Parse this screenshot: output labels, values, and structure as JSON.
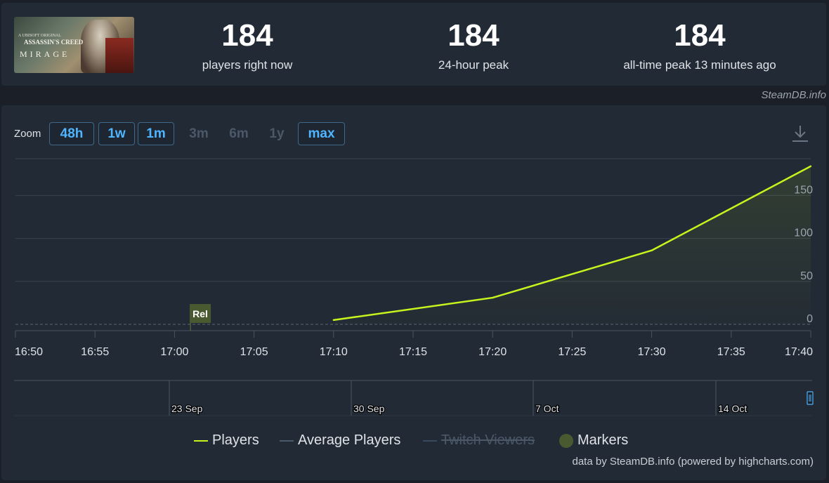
{
  "game": {
    "cover_line1": "A UBISOFT ORIGINAL",
    "cover_line2": "ASSASSIN'S CREED",
    "cover_line3": "MIRAGE"
  },
  "stats": [
    {
      "value": "184",
      "label": "players right now"
    },
    {
      "value": "184",
      "label": "24-hour peak"
    },
    {
      "value": "184",
      "label": "all-time peak 13 minutes ago"
    }
  ],
  "attribution": "SteamDB.info",
  "zoom": {
    "label": "Zoom",
    "buttons": [
      {
        "label": "48h",
        "enabled": true
      },
      {
        "label": "1w",
        "enabled": true
      },
      {
        "label": "1m",
        "enabled": true
      },
      {
        "label": "3m",
        "enabled": false
      },
      {
        "label": "6m",
        "enabled": false
      },
      {
        "label": "1y",
        "enabled": false
      },
      {
        "label": "max",
        "enabled": true
      }
    ]
  },
  "download_icon": "download-icon",
  "colors": {
    "players": "#c6f41d",
    "avg": "#4b5868",
    "twitch": "#3a4a5e",
    "marker": "#4a5a30",
    "accent": "#4fb5ff"
  },
  "chart_data": {
    "type": "line",
    "x_ticks": [
      "16:50",
      "16:55",
      "17:00",
      "17:05",
      "17:10",
      "17:15",
      "17:20",
      "17:25",
      "17:30",
      "17:35",
      "17:40"
    ],
    "y_ticks": [
      "0",
      "50",
      "100",
      "150"
    ],
    "ylim": [
      0,
      200
    ],
    "grid": true,
    "series": [
      {
        "name": "Players",
        "x": [
          "17:10",
          "17:20",
          "17:30",
          "17:40"
        ],
        "values": [
          5,
          31,
          86,
          184
        ]
      }
    ],
    "markers": [
      {
        "label": "Rel",
        "x": "17:01"
      }
    ],
    "navigator": {
      "labels": [
        "23 Sep",
        "30 Sep",
        "7 Oct",
        "14 Oct"
      ]
    },
    "legend": {
      "position": "bottom",
      "items": [
        {
          "name": "Players",
          "visible": true
        },
        {
          "name": "Average Players",
          "visible": true
        },
        {
          "name": "Twitch Viewers",
          "visible": false
        },
        {
          "name": "Markers",
          "visible": true
        }
      ]
    }
  },
  "credit": "data by SteamDB.info (powered by highcharts.com)"
}
